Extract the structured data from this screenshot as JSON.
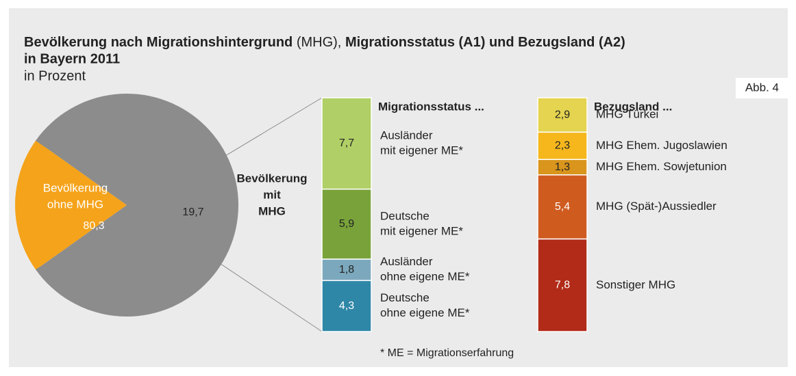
{
  "header": {
    "title": [
      "Bevölkerung nach Migrationshintergrund",
      "(MHG),",
      "Migrationsstatus (A1) und Bezugsland (A2)",
      "in Bayern 2011"
    ],
    "subtitle": "in Prozent",
    "badge": "Abb. 4",
    "footnote": "* ME = Migrationserfahrung"
  },
  "chart_data": [
    {
      "type": "pie",
      "categories": [
        [
          "Bevölkerung",
          "ohne MHG"
        ],
        [
          "Bevölkerung",
          "mit",
          "MHG"
        ]
      ],
      "values": [
        80.3,
        19.7
      ],
      "value_labels": [
        "80,3",
        "19,7"
      ],
      "colors": [
        "#8c8c8c",
        "#f5a31a"
      ],
      "text_colors": [
        "#ffffff",
        "#222222"
      ]
    },
    {
      "type": "stacked-bar",
      "title": "A1",
      "subtitle": "Migrationsstatus ...",
      "series": [
        {
          "name": [
            "Ausländer",
            "mit eigener ME*"
          ],
          "color": "#b0cf66",
          "text_color": "#222222",
          "values": [
            7.7
          ],
          "value_labels": [
            "7,7"
          ]
        },
        {
          "name": [
            "Deutsche",
            "mit eigener ME*"
          ],
          "color": "#79a33a",
          "text_color": "#222222",
          "values": [
            5.9
          ],
          "value_labels": [
            "5,9"
          ]
        },
        {
          "name": [
            "Ausländer",
            "ohne eigene ME*"
          ],
          "color": "#7ca8bd",
          "text_color": "#222222",
          "values": [
            1.8
          ],
          "value_labels": [
            "1,8"
          ]
        },
        {
          "name": [
            "Deutsche",
            "ohne eigene ME*"
          ],
          "color": "#2f87a7",
          "text_color": "#ffffff",
          "values": [
            4.3
          ],
          "value_labels": [
            "4,3"
          ]
        }
      ]
    },
    {
      "type": "stacked-bar",
      "title": "A2",
      "subtitle": "Bezugsland ...",
      "series": [
        {
          "name": [
            "MHG Türkei"
          ],
          "color": "#e4d44f",
          "text_color": "#222222",
          "values": [
            2.9
          ],
          "value_labels": [
            "2,9"
          ]
        },
        {
          "name": [
            "MHG Ehem. Jugoslawien"
          ],
          "color": "#f6b71c",
          "text_color": "#222222",
          "values": [
            2.3
          ],
          "value_labels": [
            "2,3"
          ]
        },
        {
          "name": [
            "MHG Ehem. Sowjetunion"
          ],
          "color": "#d9951c",
          "text_color": "#222222",
          "values": [
            1.3
          ],
          "value_labels": [
            "1,3"
          ]
        },
        {
          "name": [
            "MHG (Spät-)Aussiedler"
          ],
          "color": "#cf5b1f",
          "text_color": "#ffffff",
          "values": [
            5.4
          ],
          "value_labels": [
            "5,4"
          ]
        },
        {
          "name": [
            "Sonstiger MHG"
          ],
          "color": "#b12b18",
          "text_color": "#ffffff",
          "values": [
            7.8
          ],
          "value_labels": [
            "7,8"
          ]
        }
      ]
    }
  ]
}
